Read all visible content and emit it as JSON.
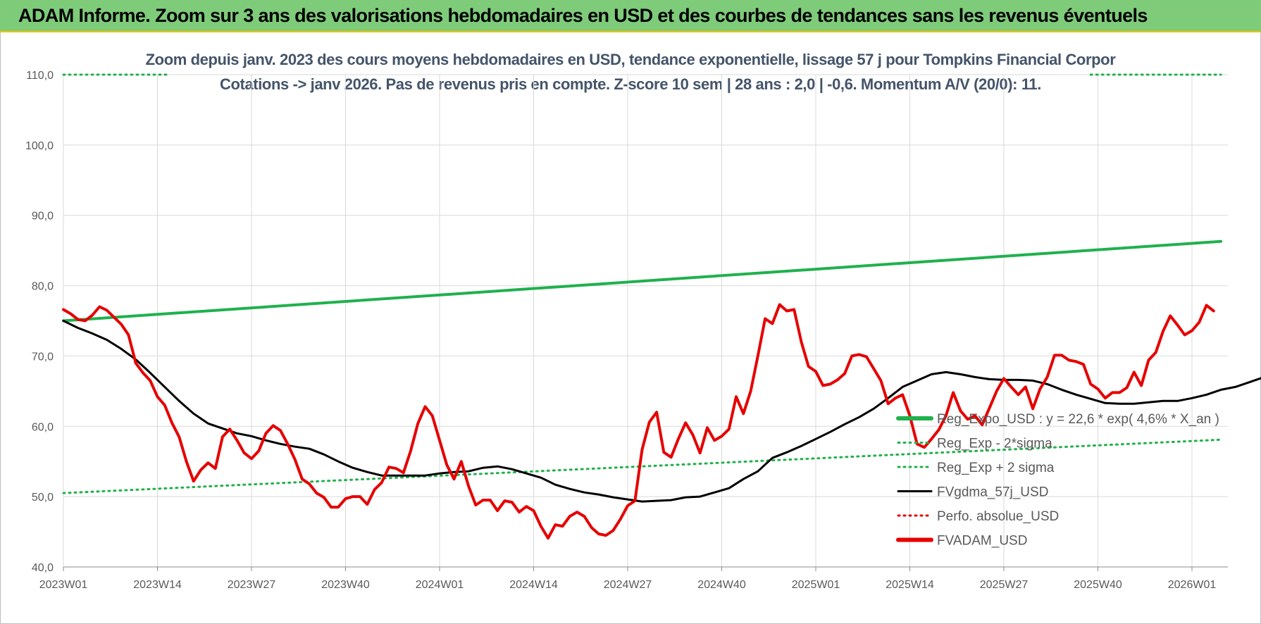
{
  "banner": {
    "title": "ADAM Informe. Zoom sur 3 ans des valorisations hebdomadaires en USD et des courbes de tendances sans les revenus éventuels"
  },
  "chart_data": {
    "type": "line",
    "title_line1": "Zoom depuis janv. 2023 des cours moyens hebdomadaires en USD, tendance exponentielle, lissage 57 j pour Tompkins Financial Corpor",
    "title_line2": "Cotations -> janv 2026. Pas de revenus pris en compte. Z-score 10 sem | 28 ans : 2,0 | -0,6. Momentum A/V (20/0): 11.",
    "ylim": [
      40,
      110
    ],
    "y_ticks": [
      "40,0",
      "50,0",
      "60,0",
      "70,0",
      "80,0",
      "90,0",
      "100,0",
      "110,0"
    ],
    "x_ticks": [
      {
        "label": "2023W01",
        "week": 0
      },
      {
        "label": "2023W14",
        "week": 13
      },
      {
        "label": "2023W27",
        "week": 26
      },
      {
        "label": "2023W40",
        "week": 39
      },
      {
        "label": "2024W01",
        "week": 52
      },
      {
        "label": "2024W14",
        "week": 65
      },
      {
        "label": "2024W27",
        "week": 78
      },
      {
        "label": "2024W40",
        "week": 91
      },
      {
        "label": "2025W01",
        "week": 104
      },
      {
        "label": "2025W14",
        "week": 117
      },
      {
        "label": "2025W27",
        "week": 130
      },
      {
        "label": "2025W40",
        "week": 143
      },
      {
        "label": "2026W01",
        "week": 156
      }
    ],
    "x_range_weeks": [
      0,
      160
    ],
    "grid": true,
    "legend_position": "right",
    "colors": {
      "reg_exp": "#1fb14d",
      "sigma": "#22b14c",
      "fvgdma": "#000000",
      "perfo": "#e60000",
      "fvadam": "#e60000",
      "grid": "#d9d9d9"
    },
    "series": [
      {
        "name": "Reg_Expo_USD : y = 22,6 * exp( 4,6% *  X_an )",
        "style": "solid-thick",
        "color_key": "reg_exp",
        "points": [
          [
            0,
            75.0
          ],
          [
            160,
            86.3
          ]
        ]
      },
      {
        "name": "Reg_Exp - 2*sigma",
        "style": "dotted",
        "color_key": "sigma",
        "points": [
          [
            0,
            50.5
          ],
          [
            160,
            58.1
          ]
        ]
      },
      {
        "name": "Reg_Exp + 2 sigma",
        "style": "dotted",
        "color_key": "sigma",
        "points": [
          [
            0,
            110.0
          ],
          [
            14.7,
            110.0
          ],
          [
            142,
            110.0
          ],
          [
            160,
            110.0
          ]
        ],
        "visible_segments": [
          [
            0,
            14.7
          ],
          [
            142,
            160
          ]
        ]
      },
      {
        "name": "FVgdma_57j_USD",
        "style": "solid",
        "color_key": "fvgdma",
        "points": [
          [
            0,
            75.0
          ],
          [
            2,
            74.0
          ],
          [
            4,
            73.2
          ],
          [
            6,
            72.3
          ],
          [
            8,
            71.0
          ],
          [
            10,
            69.5
          ],
          [
            12,
            67.6
          ],
          [
            14,
            65.6
          ],
          [
            16,
            63.6
          ],
          [
            18,
            61.8
          ],
          [
            20,
            60.4
          ],
          [
            22,
            59.7
          ],
          [
            24,
            59.0
          ],
          [
            26,
            58.6
          ],
          [
            28,
            58.0
          ],
          [
            30,
            57.5
          ],
          [
            32,
            57.1
          ],
          [
            34,
            56.8
          ],
          [
            36,
            56.0
          ],
          [
            38,
            55.0
          ],
          [
            40,
            54.1
          ],
          [
            42,
            53.5
          ],
          [
            44,
            53.0
          ],
          [
            46,
            53.0
          ],
          [
            48,
            53.0
          ],
          [
            50,
            53.0
          ],
          [
            52,
            53.3
          ],
          [
            54,
            53.5
          ],
          [
            56,
            53.6
          ],
          [
            58,
            54.1
          ],
          [
            60,
            54.3
          ],
          [
            62,
            53.9
          ],
          [
            64,
            53.3
          ],
          [
            66,
            52.7
          ],
          [
            68,
            51.7
          ],
          [
            70,
            51.1
          ],
          [
            72,
            50.6
          ],
          [
            74,
            50.3
          ],
          [
            76,
            49.9
          ],
          [
            78,
            49.6
          ],
          [
            80,
            49.3
          ],
          [
            82,
            49.4
          ],
          [
            84,
            49.5
          ],
          [
            86,
            49.9
          ],
          [
            88,
            50.0
          ],
          [
            90,
            50.6
          ],
          [
            92,
            51.2
          ],
          [
            94,
            52.5
          ],
          [
            96,
            53.6
          ],
          [
            98,
            55.5
          ],
          [
            100,
            56.3
          ],
          [
            102,
            57.2
          ],
          [
            104,
            58.2
          ],
          [
            106,
            59.2
          ],
          [
            108,
            60.3
          ],
          [
            110,
            61.3
          ],
          [
            112,
            62.5
          ],
          [
            114,
            64.0
          ],
          [
            116,
            65.6
          ],
          [
            118,
            66.5
          ],
          [
            120,
            67.4
          ],
          [
            122,
            67.7
          ],
          [
            124,
            67.4
          ],
          [
            126,
            67.0
          ],
          [
            128,
            66.7
          ],
          [
            130,
            66.6
          ],
          [
            132,
            66.6
          ],
          [
            134,
            66.5
          ],
          [
            136,
            66.0
          ],
          [
            138,
            65.2
          ],
          [
            140,
            64.5
          ],
          [
            142,
            63.9
          ],
          [
            144,
            63.3
          ],
          [
            146,
            63.2
          ],
          [
            148,
            63.2
          ],
          [
            150,
            63.4
          ],
          [
            152,
            63.6
          ],
          [
            154,
            63.6
          ],
          [
            156,
            64.0
          ],
          [
            158,
            64.5
          ],
          [
            160,
            65.2
          ],
          [
            162,
            65.6
          ],
          [
            164,
            66.3
          ],
          [
            166,
            67.0
          ],
          [
            168,
            67.6
          ],
          [
            170,
            67.6
          ],
          [
            172,
            67.8
          ],
          [
            174,
            68.2
          ],
          [
            176,
            69.0
          ],
          [
            178,
            70.0
          ],
          [
            180,
            71.5
          ],
          [
            182,
            72.7
          ],
          [
            184,
            73.5
          ],
          [
            186,
            74.2
          ]
        ]
      },
      {
        "name": "Perfo. absolue_USD",
        "style": "dotted",
        "color_key": "perfo",
        "points": []
      },
      {
        "name": "FVADAM_USD",
        "style": "solid-thick",
        "color_key": "fvadam",
        "points": [
          [
            0,
            76.6
          ],
          [
            1,
            76.0
          ],
          [
            2,
            75.2
          ],
          [
            3,
            75.0
          ],
          [
            4,
            75.8
          ],
          [
            5,
            77.0
          ],
          [
            6,
            76.5
          ],
          [
            7,
            75.5
          ],
          [
            8,
            74.5
          ],
          [
            9,
            73.0
          ],
          [
            10,
            69.0
          ],
          [
            11,
            67.6
          ],
          [
            12,
            66.5
          ],
          [
            13,
            64.2
          ],
          [
            14,
            63.0
          ],
          [
            15,
            60.5
          ],
          [
            16,
            58.5
          ],
          [
            17,
            55.0
          ],
          [
            18,
            52.2
          ],
          [
            19,
            53.8
          ],
          [
            20,
            54.8
          ],
          [
            21,
            54.0
          ],
          [
            22,
            58.5
          ],
          [
            23,
            59.6
          ],
          [
            24,
            58.0
          ],
          [
            25,
            56.2
          ],
          [
            26,
            55.4
          ],
          [
            27,
            56.5
          ],
          [
            28,
            59.0
          ],
          [
            29,
            60.1
          ],
          [
            30,
            59.4
          ],
          [
            31,
            57.5
          ],
          [
            32,
            55.3
          ],
          [
            33,
            52.5
          ],
          [
            34,
            51.8
          ],
          [
            35,
            50.5
          ],
          [
            36,
            49.9
          ],
          [
            37,
            48.5
          ],
          [
            38,
            48.5
          ],
          [
            39,
            49.7
          ],
          [
            40,
            50.0
          ],
          [
            41,
            50.0
          ],
          [
            42,
            48.9
          ],
          [
            43,
            51.0
          ],
          [
            44,
            52.0
          ],
          [
            45,
            54.2
          ],
          [
            46,
            54.0
          ],
          [
            47,
            53.4
          ],
          [
            48,
            56.5
          ],
          [
            49,
            60.4
          ],
          [
            50,
            62.8
          ],
          [
            51,
            61.5
          ],
          [
            52,
            58.0
          ],
          [
            53,
            54.5
          ],
          [
            54,
            52.5
          ],
          [
            55,
            55.0
          ],
          [
            56,
            51.5
          ],
          [
            57,
            48.8
          ],
          [
            58,
            49.5
          ],
          [
            59,
            49.5
          ],
          [
            60,
            48.0
          ],
          [
            61,
            49.4
          ],
          [
            62,
            49.2
          ],
          [
            63,
            47.8
          ],
          [
            64,
            48.6
          ],
          [
            65,
            48.0
          ],
          [
            66,
            45.8
          ],
          [
            67,
            44.1
          ],
          [
            68,
            46.0
          ],
          [
            69,
            45.8
          ],
          [
            70,
            47.2
          ],
          [
            71,
            47.8
          ],
          [
            72,
            47.2
          ],
          [
            73,
            45.6
          ],
          [
            74,
            44.7
          ],
          [
            75,
            44.5
          ],
          [
            76,
            45.2
          ],
          [
            77,
            46.8
          ],
          [
            78,
            48.7
          ],
          [
            79,
            49.4
          ],
          [
            80,
            56.7
          ],
          [
            81,
            60.6
          ],
          [
            82,
            62.0
          ],
          [
            83,
            56.3
          ],
          [
            84,
            55.6
          ],
          [
            85,
            58.2
          ],
          [
            86,
            60.5
          ],
          [
            87,
            58.8
          ],
          [
            88,
            56.2
          ],
          [
            89,
            59.8
          ],
          [
            90,
            58.0
          ],
          [
            91,
            58.6
          ],
          [
            92,
            59.6
          ],
          [
            93,
            64.2
          ],
          [
            94,
            61.8
          ],
          [
            95,
            65.0
          ],
          [
            96,
            70.0
          ],
          [
            97,
            75.3
          ],
          [
            98,
            74.6
          ],
          [
            99,
            77.3
          ],
          [
            100,
            76.4
          ],
          [
            101,
            76.6
          ],
          [
            102,
            72.0
          ],
          [
            103,
            68.5
          ],
          [
            104,
            67.8
          ],
          [
            105,
            65.8
          ],
          [
            106,
            66.0
          ],
          [
            107,
            66.6
          ],
          [
            108,
            67.5
          ],
          [
            109,
            70.0
          ],
          [
            110,
            70.2
          ],
          [
            111,
            69.9
          ],
          [
            112,
            68.2
          ],
          [
            113,
            66.5
          ],
          [
            114,
            63.2
          ],
          [
            115,
            64.0
          ],
          [
            116,
            64.5
          ],
          [
            117,
            61.5
          ],
          [
            118,
            57.5
          ],
          [
            119,
            57.0
          ],
          [
            120,
            58.2
          ],
          [
            121,
            59.5
          ],
          [
            122,
            61.5
          ],
          [
            123,
            64.8
          ],
          [
            124,
            62.2
          ],
          [
            125,
            61.0
          ],
          [
            126,
            61.5
          ],
          [
            127,
            60.2
          ],
          [
            128,
            62.6
          ],
          [
            129,
            65.0
          ],
          [
            130,
            66.8
          ],
          [
            131,
            65.6
          ],
          [
            132,
            64.5
          ],
          [
            133,
            65.6
          ],
          [
            134,
            62.5
          ],
          [
            135,
            65.3
          ],
          [
            136,
            67.0
          ],
          [
            137,
            70.1
          ],
          [
            138,
            70.1
          ],
          [
            139,
            69.4
          ],
          [
            140,
            69.2
          ],
          [
            141,
            68.8
          ],
          [
            142,
            66.0
          ],
          [
            143,
            65.3
          ],
          [
            144,
            64.0
          ],
          [
            145,
            64.8
          ],
          [
            146,
            64.8
          ],
          [
            147,
            65.5
          ],
          [
            148,
            67.7
          ],
          [
            149,
            65.8
          ],
          [
            150,
            69.4
          ],
          [
            151,
            70.5
          ],
          [
            152,
            73.5
          ],
          [
            153,
            75.7
          ],
          [
            154,
            74.4
          ],
          [
            155,
            73.0
          ],
          [
            156,
            73.6
          ],
          [
            157,
            74.8
          ],
          [
            158,
            77.2
          ],
          [
            159,
            76.4
          ]
        ]
      }
    ]
  }
}
